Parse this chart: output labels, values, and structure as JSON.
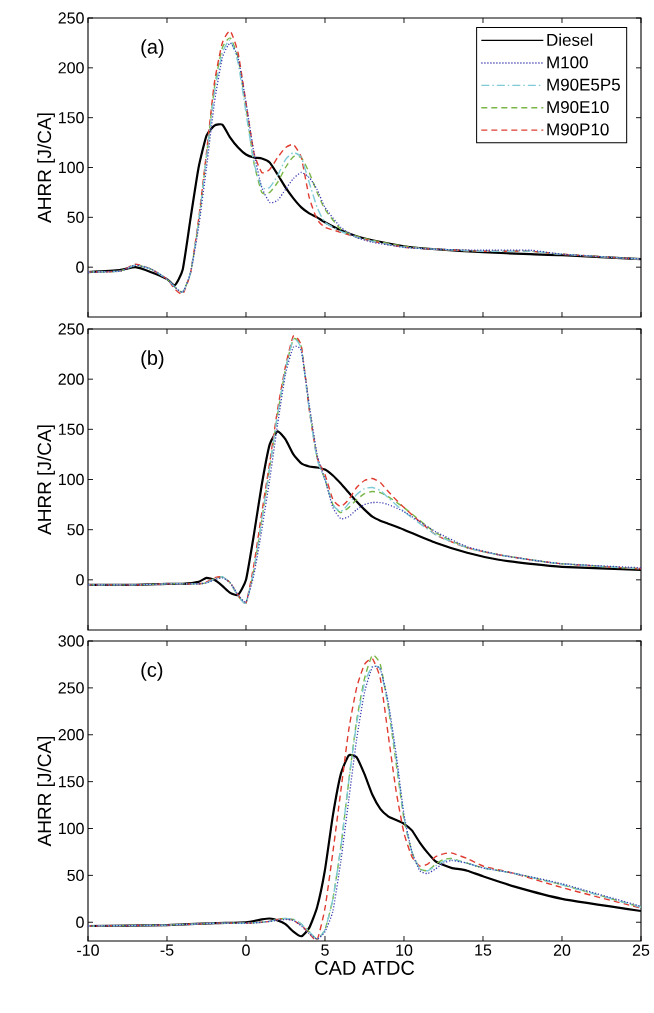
{
  "chart_data": [
    {
      "type": "line",
      "ylabel": "AHRR [J/CA]",
      "annotations": [
        "(a)"
      ],
      "legend": "top right",
      "tick_labels": "y",
      "xlim": [
        -10,
        25
      ],
      "xticks": [
        -10,
        -5,
        0,
        5,
        10,
        15,
        20,
        25
      ],
      "ylim": [
        -50,
        250
      ],
      "yticks": [
        0,
        50,
        100,
        150,
        200,
        250
      ],
      "x": [
        -10,
        -8,
        -7,
        -6,
        -5,
        -4.5,
        -4,
        -3.5,
        -3,
        -2.5,
        -2,
        -1.5,
        -1,
        -0.5,
        0,
        0.5,
        1,
        1.5,
        2,
        2.5,
        3,
        3.5,
        4,
        4.5,
        5,
        6,
        7,
        8,
        10,
        12,
        15,
        18,
        20,
        25
      ],
      "series": [
        {
          "name": "Diesel",
          "color": "#000000",
          "line_style": "solid",
          "values": [
            -5,
            -3,
            0,
            -5,
            -12,
            -18,
            -2,
            50,
            100,
            132,
            142,
            143,
            130,
            120,
            113,
            110,
            109,
            105,
            93,
            80,
            69,
            60,
            54,
            50,
            45,
            37,
            31,
            27,
            21,
            18,
            15,
            13,
            12,
            8
          ]
        },
        {
          "name": "M100",
          "color": "#3a3ab0",
          "line_style": "dotted",
          "values": [
            -5,
            -4,
            2,
            -2,
            -12,
            -20,
            -25,
            -5,
            40,
            100,
            165,
            210,
            225,
            210,
            165,
            115,
            80,
            65,
            67,
            78,
            89,
            95,
            90,
            78,
            60,
            40,
            30,
            25,
            20,
            18,
            17,
            17,
            13,
            8
          ]
        },
        {
          "name": "M90E5P5",
          "color": "#7ecbd6",
          "line_style": "dashdot",
          "values": [
            -5,
            -4,
            2,
            -2,
            -12,
            -20,
            -25,
            -5,
            45,
            110,
            175,
            215,
            228,
            205,
            155,
            105,
            80,
            80,
            92,
            108,
            115,
            110,
            85,
            60,
            45,
            36,
            30,
            26,
            20,
            18,
            16,
            16,
            13,
            8
          ]
        },
        {
          "name": "M90E10",
          "color": "#7ab648",
          "line_style": "dashed",
          "values": [
            -5,
            -4,
            2,
            -2,
            -12,
            -20,
            -25,
            -5,
            45,
            112,
            180,
            220,
            230,
            210,
            160,
            105,
            75,
            75,
            85,
            100,
            111,
            110,
            95,
            75,
            58,
            38,
            31,
            27,
            21,
            18,
            16,
            16,
            13,
            8
          ]
        },
        {
          "name": "M90P10",
          "color": "#e03c31",
          "line_style": "dashed",
          "values": [
            -5,
            -4,
            3,
            -2,
            -12,
            -22,
            -27,
            -5,
            48,
            115,
            185,
            225,
            237,
            215,
            165,
            115,
            95,
            98,
            110,
            120,
            123,
            110,
            70,
            48,
            40,
            35,
            30,
            26,
            20,
            18,
            16,
            16,
            13,
            8
          ]
        }
      ]
    },
    {
      "type": "line",
      "ylabel": "AHRR [J/CA]",
      "annotations": [
        "(b)"
      ],
      "tick_labels": "y",
      "xlim": [
        -10,
        25
      ],
      "xticks": [
        -10,
        -5,
        0,
        5,
        10,
        15,
        20,
        25
      ],
      "ylim": [
        -50,
        250
      ],
      "yticks": [
        0,
        50,
        100,
        150,
        200,
        250
      ],
      "x": [
        -10,
        -7,
        -5,
        -4,
        -3,
        -2.5,
        -2,
        -1.5,
        -1,
        -0.5,
        0,
        0.5,
        1,
        1.5,
        2,
        2.5,
        3,
        3.5,
        4,
        4.5,
        5,
        5.5,
        6,
        6.5,
        7,
        7.5,
        8,
        8.5,
        9,
        10,
        12,
        14,
        16,
        18,
        20,
        25
      ],
      "series": [
        {
          "color": "#000000",
          "line_style": "solid",
          "values": [
            -5,
            -5,
            -4,
            -4,
            -2,
            2,
            0,
            -6,
            -13,
            -15,
            0,
            45,
            95,
            135,
            148,
            140,
            125,
            116,
            113,
            112,
            110,
            104,
            96,
            87,
            78,
            70,
            63,
            59,
            56,
            50,
            37,
            27,
            20,
            16,
            13,
            10
          ]
        },
        {
          "color": "#3a3ab0",
          "line_style": "dotted",
          "values": [
            -5,
            -5,
            -4,
            -4,
            -4,
            -3,
            0,
            2,
            -3,
            -15,
            -22,
            5,
            50,
            100,
            155,
            205,
            232,
            228,
            175,
            125,
            100,
            72,
            61,
            63,
            70,
            75,
            77,
            77,
            75,
            68,
            48,
            33,
            25,
            20,
            16,
            12
          ]
        },
        {
          "color": "#7ecbd6",
          "line_style": "dashdot",
          "values": [
            -5,
            -5,
            -4,
            -4,
            -4,
            -3,
            1,
            3,
            -3,
            -16,
            -23,
            10,
            60,
            112,
            165,
            210,
            240,
            230,
            170,
            120,
            100,
            75,
            68,
            76,
            85,
            91,
            92,
            89,
            82,
            68,
            45,
            32,
            25,
            20,
            16,
            11
          ]
        },
        {
          "color": "#7ab648",
          "line_style": "dashed",
          "values": [
            -5,
            -5,
            -4,
            -4,
            -4,
            -3,
            1,
            3,
            -3,
            -16,
            -23,
            10,
            60,
            112,
            165,
            210,
            240,
            232,
            172,
            122,
            100,
            75,
            67,
            72,
            80,
            86,
            88,
            87,
            83,
            72,
            47,
            32,
            25,
            20,
            16,
            11
          ]
        },
        {
          "color": "#e03c31",
          "line_style": "dashed",
          "values": [
            -5,
            -5,
            -4,
            -4,
            -4,
            -2,
            2,
            3,
            -3,
            -15,
            -23,
            15,
            67,
            117,
            170,
            213,
            243,
            233,
            170,
            122,
            105,
            80,
            73,
            80,
            92,
            99,
            101,
            97,
            88,
            72,
            45,
            32,
            25,
            20,
            16,
            11
          ]
        }
      ]
    },
    {
      "type": "line",
      "ylabel": "AHRR [J/CA]",
      "xlabel": "CAD ATDC",
      "annotations": [
        "(c)"
      ],
      "xlim": [
        -10,
        25
      ],
      "xticks": [
        -10,
        -5,
        0,
        5,
        10,
        15,
        20,
        25
      ],
      "ylim": [
        -20,
        300
      ],
      "yticks": [
        0,
        50,
        100,
        150,
        200,
        250,
        300
      ],
      "x": [
        -10,
        -5,
        -2,
        0,
        1,
        1.5,
        2,
        2.5,
        3,
        3.5,
        4,
        4.5,
        5,
        5.5,
        6,
        6.5,
        7,
        7.5,
        8,
        8.5,
        9,
        9.5,
        10,
        10.5,
        11,
        11.5,
        12,
        12.5,
        13,
        14,
        15,
        17,
        20,
        25
      ],
      "series": [
        {
          "color": "#000000",
          "line_style": "solid",
          "values": [
            -4,
            -3,
            -1,
            0,
            3,
            4,
            2,
            -2,
            -10,
            -15,
            -6,
            16,
            56,
            114,
            158,
            178,
            176,
            158,
            136,
            121,
            113,
            109,
            105,
            98,
            85,
            74,
            65,
            61,
            58,
            55,
            49,
            38,
            25,
            12
          ]
        },
        {
          "color": "#3a3ab0",
          "line_style": "dotted",
          "values": [
            -4,
            -3,
            -1,
            -1,
            0,
            1,
            2,
            3,
            2,
            -4,
            -12,
            -18,
            -10,
            12,
            65,
            130,
            195,
            245,
            272,
            270,
            235,
            180,
            115,
            75,
            55,
            52,
            57,
            63,
            66,
            63,
            58,
            52,
            41,
            17
          ]
        },
        {
          "color": "#7ecbd6",
          "line_style": "dashdot",
          "values": [
            -4,
            -3,
            -1,
            -1,
            0,
            1,
            3,
            4,
            3,
            -2,
            -10,
            -18,
            -8,
            25,
            80,
            150,
            212,
            255,
            273,
            270,
            232,
            175,
            112,
            75,
            57,
            55,
            60,
            65,
            67,
            63,
            58,
            52,
            40,
            16
          ]
        },
        {
          "color": "#7ab648",
          "line_style": "dashed",
          "values": [
            -4,
            -3,
            -1,
            -1,
            0,
            1,
            3,
            4,
            3,
            -2,
            -10,
            -18,
            -8,
            25,
            80,
            150,
            215,
            260,
            285,
            275,
            230,
            170,
            110,
            75,
            57,
            55,
            62,
            67,
            68,
            63,
            58,
            52,
            40,
            16
          ]
        },
        {
          "color": "#e03c31",
          "line_style": "dashed",
          "values": [
            -4,
            -3,
            -1,
            -1,
            0,
            1,
            3,
            4,
            2,
            -3,
            -12,
            -19,
            15,
            75,
            140,
            205,
            250,
            275,
            281,
            260,
            200,
            140,
            95,
            70,
            60,
            62,
            70,
            73,
            74,
            68,
            60,
            52,
            37,
            15
          ]
        }
      ]
    }
  ]
}
